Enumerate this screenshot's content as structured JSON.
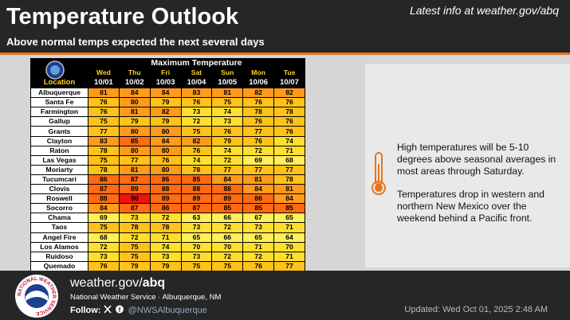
{
  "header": {
    "title": "Temperature Outlook",
    "latest": "Latest info at weather.gov/abq",
    "subtitle": "Above normal temps expected the next several days"
  },
  "table": {
    "title": "Maximum Temperature",
    "location_label": "Location",
    "days": [
      "Wed",
      "Thu",
      "Fri",
      "Sat",
      "Sun",
      "Mon",
      "Tue"
    ],
    "dates": [
      "10/01",
      "10/02",
      "10/03",
      "10/04",
      "10/05",
      "10/06",
      "10/07"
    ],
    "rows": [
      {
        "location": "Albuquerque",
        "values": [
          81,
          84,
          84,
          83,
          81,
          82,
          82
        ]
      },
      {
        "location": "Santa Fe",
        "values": [
          76,
          80,
          79,
          76,
          75,
          76,
          76
        ]
      },
      {
        "location": "Farmington",
        "values": [
          76,
          81,
          82,
          73,
          74,
          78,
          78
        ]
      },
      {
        "location": "Gallup",
        "values": [
          75,
          79,
          79,
          72,
          73,
          76,
          76
        ]
      },
      {
        "location": "Grants",
        "values": [
          77,
          80,
          80,
          75,
          76,
          77,
          76
        ]
      },
      {
        "location": "Clayton",
        "values": [
          83,
          85,
          84,
          82,
          79,
          76,
          74
        ]
      },
      {
        "location": "Raton",
        "values": [
          78,
          80,
          80,
          76,
          74,
          72,
          71
        ]
      },
      {
        "location": "Las Vegas",
        "values": [
          75,
          77,
          76,
          74,
          72,
          69,
          68
        ]
      },
      {
        "location": "Moriarty",
        "values": [
          78,
          81,
          80,
          78,
          77,
          77,
          77
        ]
      },
      {
        "location": "Tucumcari",
        "values": [
          86,
          87,
          86,
          85,
          84,
          81,
          78
        ]
      },
      {
        "location": "Clovis",
        "values": [
          87,
          89,
          88,
          88,
          88,
          84,
          81
        ]
      },
      {
        "location": "Roswell",
        "values": [
          88,
          90,
          89,
          89,
          89,
          86,
          84
        ]
      },
      {
        "location": "Socorro",
        "values": [
          84,
          87,
          86,
          87,
          85,
          85,
          85
        ]
      },
      {
        "location": "Chama",
        "values": [
          69,
          73,
          72,
          63,
          66,
          67,
          65
        ]
      },
      {
        "location": "Taos",
        "values": [
          75,
          78,
          78,
          73,
          72,
          73,
          71
        ]
      },
      {
        "location": "Angel Fire",
        "values": [
          68,
          72,
          71,
          65,
          66,
          65,
          64
        ]
      },
      {
        "location": "Los Alamos",
        "values": [
          72,
          75,
          74,
          70,
          70,
          71,
          70
        ]
      },
      {
        "location": "Ruidoso",
        "values": [
          73,
          75,
          73,
          73,
          72,
          72,
          71
        ]
      },
      {
        "location": "Quemado",
        "values": [
          76,
          79,
          79,
          75,
          75,
          76,
          77
        ]
      }
    ]
  },
  "panel": {
    "paragraphs": [
      "High temperatures will be 5-10 degrees above seasonal averages in most areas through Saturday.",
      "Temperatures drop in western and northern New Mexico over the weekend behind a Pacific front."
    ]
  },
  "footer": {
    "logo_text": "NATIONAL WEATHER SERVICE",
    "site": "weather.gov/",
    "site_bold": "abq",
    "office": "National Weather Service · Albuquerque, NM",
    "follow": "Follow:",
    "handle": "@NWSAlbuquerque",
    "updated": "Updated: Wed Oct 01, 2025 2:48 AM"
  }
}
